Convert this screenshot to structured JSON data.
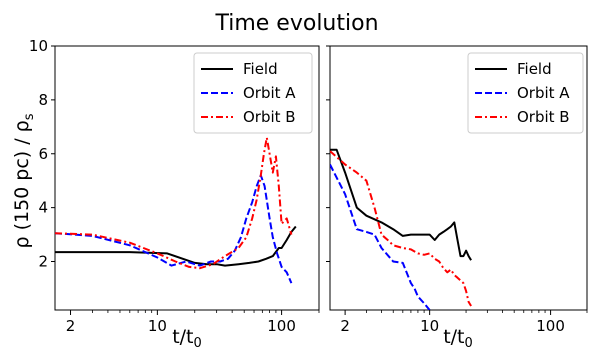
{
  "figure": {
    "title": "Time evolution",
    "ylabel": "ρ (150 pc) / ρ_s",
    "ylabel_main": "ρ (150 pc) / ρ",
    "ylabel_sub": "s",
    "xlabel": "t/t_0",
    "xlabel_main": "t/t",
    "xlabel_sub": "0"
  },
  "chart_data": [
    {
      "type": "line",
      "panel": "left",
      "xscale": "log",
      "xlim": [
        1.5,
        200
      ],
      "ylim": [
        0.2,
        10
      ],
      "yticks": [
        2,
        4,
        6,
        8,
        10
      ],
      "ytick_labels": [
        "2",
        "4",
        "6",
        "8",
        "10"
      ],
      "xticks": [
        2,
        10,
        100
      ],
      "xtick_labels": [
        "2",
        "10",
        "100"
      ],
      "legend_position": "top-right",
      "series": [
        {
          "name": "Field",
          "color": "#000000",
          "style": "solid",
          "x": [
            1.5,
            3,
            6,
            12,
            20,
            25,
            30,
            35,
            45,
            55,
            65,
            75,
            85,
            95,
            100,
            110,
            120,
            130
          ],
          "y": [
            2.35,
            2.35,
            2.35,
            2.3,
            1.95,
            1.9,
            1.9,
            1.85,
            1.9,
            1.95,
            2.0,
            2.1,
            2.2,
            2.5,
            2.5,
            2.8,
            3.1,
            3.3
          ]
        },
        {
          "name": "Orbit A",
          "color": "#0000ff",
          "style": "dashed",
          "x": [
            1.5,
            3,
            6,
            10,
            13,
            17,
            22,
            27,
            32,
            37,
            42,
            47,
            52,
            58,
            63,
            68,
            73,
            80,
            85,
            92,
            100,
            110,
            120
          ],
          "y": [
            3.05,
            2.95,
            2.6,
            2.15,
            1.85,
            2.0,
            1.85,
            2.0,
            2.0,
            2.1,
            2.4,
            2.9,
            3.6,
            4.2,
            4.8,
            5.2,
            4.8,
            3.6,
            2.9,
            2.3,
            1.8,
            1.6,
            1.2
          ]
        },
        {
          "name": "Orbit B",
          "color": "#ff0000",
          "style": "dashdot",
          "x": [
            1.5,
            3,
            6,
            10,
            14,
            18,
            22,
            28,
            35,
            45,
            52,
            58,
            63,
            68,
            72,
            76,
            80,
            85,
            90,
            95,
            100,
            110,
            120
          ],
          "y": [
            3.05,
            3.0,
            2.7,
            2.3,
            2.0,
            1.8,
            1.75,
            1.9,
            2.2,
            2.5,
            2.9,
            3.6,
            4.3,
            5.2,
            6.0,
            6.6,
            6.0,
            5.3,
            5.9,
            4.8,
            3.4,
            3.6,
            3.0
          ]
        }
      ]
    },
    {
      "type": "line",
      "panel": "right",
      "xscale": "log",
      "xlim": [
        1.5,
        200
      ],
      "ylim": [
        0.2,
        10
      ],
      "yticks": [
        2,
        4,
        6,
        8,
        10
      ],
      "ytick_labels": [],
      "xticks": [
        2,
        10,
        100
      ],
      "xtick_labels": [
        "2",
        "10",
        "100"
      ],
      "legend_position": "top-right",
      "series": [
        {
          "name": "Field",
          "color": "#000000",
          "style": "solid",
          "x": [
            1.5,
            1.7,
            2,
            2.5,
            3,
            4,
            5,
            6,
            7,
            8,
            9,
            10,
            11,
            12,
            13,
            14,
            15,
            16,
            17,
            18,
            19,
            20,
            21,
            22
          ],
          "y": [
            6.15,
            6.15,
            5.3,
            4.0,
            3.7,
            3.45,
            3.2,
            2.95,
            3.0,
            3.0,
            3.0,
            3.0,
            2.8,
            3.0,
            3.1,
            3.2,
            3.3,
            3.45,
            2.8,
            2.2,
            2.2,
            2.4,
            2.2,
            2.05
          ]
        },
        {
          "name": "Orbit A",
          "color": "#0000ff",
          "style": "dashed",
          "x": [
            1.5,
            2,
            2.5,
            3,
            3.5,
            4,
            5,
            6,
            7,
            7.5,
            8,
            9,
            10
          ],
          "y": [
            5.6,
            4.5,
            3.2,
            3.1,
            3.0,
            2.5,
            2.0,
            1.95,
            1.2,
            1.0,
            0.7,
            0.45,
            0.2
          ]
        },
        {
          "name": "Orbit B",
          "color": "#ff0000",
          "style": "dashdot",
          "x": [
            1.5,
            2,
            2.5,
            3,
            3.5,
            4,
            4.5,
            5,
            6,
            7,
            8,
            9,
            10,
            11,
            12,
            13,
            14,
            15,
            16,
            17,
            18,
            19,
            20,
            21,
            22
          ],
          "y": [
            6.1,
            5.6,
            5.3,
            5.0,
            4.0,
            3.0,
            2.8,
            2.6,
            2.5,
            2.45,
            2.3,
            2.25,
            2.3,
            2.1,
            2.0,
            1.75,
            1.6,
            1.7,
            1.5,
            1.4,
            1.3,
            1.2,
            0.9,
            0.5,
            0.35
          ]
        }
      ]
    }
  ]
}
